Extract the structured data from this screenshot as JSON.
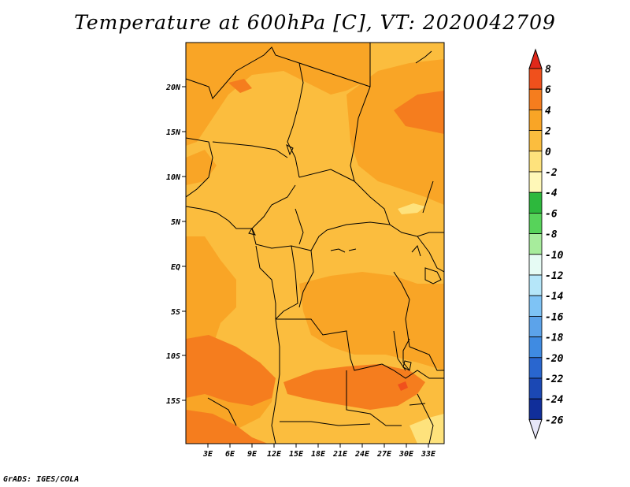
{
  "title": "Temperature at 600hPa [C], VT: 2020042709",
  "footer": "GrADS: IGES/COLA",
  "map": {
    "lon_range": [
      0,
      35
    ],
    "lat_range": [
      -20,
      24
    ],
    "x_ticks": [
      "3E",
      "6E",
      "9E",
      "12E",
      "15E",
      "18E",
      "21E",
      "24E",
      "27E",
      "30E",
      "33E"
    ],
    "y_ticks": [
      "20N",
      "15N",
      "10N",
      "5N",
      "EQ",
      "5S",
      "10S",
      "15S"
    ]
  },
  "colorbar": {
    "labels": [
      "8",
      "6",
      "4",
      "2",
      "0",
      "-2",
      "-4",
      "-6",
      "-8",
      "-10",
      "-12",
      "-14",
      "-16",
      "-18",
      "-20",
      "-22",
      "-24",
      "-26"
    ],
    "colors": {
      "gt_8": "#e0281a",
      "6_8": "#f0501c",
      "4_6": "#f57d1e",
      "2_4": "#f9a526",
      "0_2": "#fbbd3e",
      "m2_0": "#fee27c",
      "m4_m2": "#fff8b8",
      "m6_m4": "#2db83d",
      "m8_m6": "#57d35a",
      "m10_m8": "#a7ec9c",
      "m12_m10": "#e6fbf4",
      "m14_m12": "#b5e6f9",
      "m16_m14": "#7ec3f5",
      "m18_m16": "#5ca3ea",
      "m20_m18": "#3f8be2",
      "m22_m20": "#2966cf",
      "m24_m22": "#1b48b4",
      "m26_m24": "#102e9a",
      "lt_m26": "#0b1670",
      "lowest": "#e6e6f8"
    }
  }
}
